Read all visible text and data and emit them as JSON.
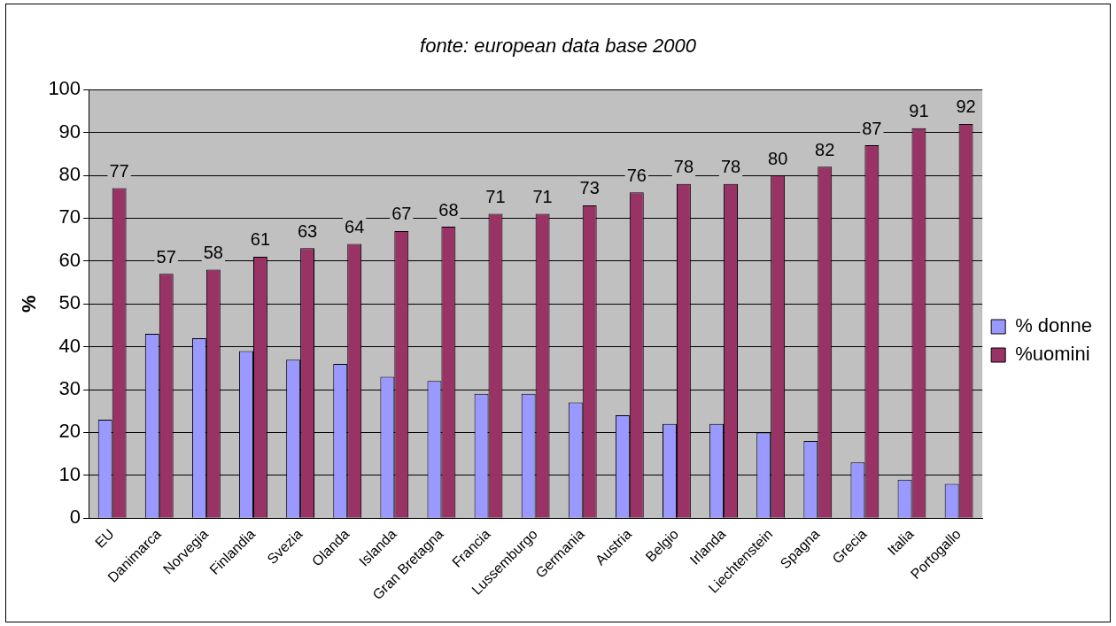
{
  "chart_data": {
    "type": "bar",
    "title": "fonte: european data base 2000",
    "ylabel": "%",
    "categories": [
      "EU",
      "Danimarca",
      "Norvegia",
      "Finlandia",
      "Svezia",
      "Olanda",
      "Islanda",
      "Gran Bretagna",
      "Francia",
      "Lussemburgo",
      "Germania",
      "Austria",
      "Belgio",
      "Irlanda",
      "Liechtenstein",
      "Spagna",
      "Grecia",
      "Italia",
      "Portogallo"
    ],
    "series": [
      {
        "name": "% donne",
        "color": "#9999ff",
        "values": [
          23,
          43,
          42,
          39,
          37,
          36,
          33,
          32,
          29,
          29,
          27,
          24,
          22,
          22,
          20,
          18,
          13,
          9,
          8
        ]
      },
      {
        "name": "%uomini",
        "color": "#993366",
        "values": [
          77,
          57,
          58,
          61,
          63,
          64,
          67,
          68,
          71,
          71,
          73,
          76,
          78,
          78,
          80,
          82,
          87,
          91,
          92
        ],
        "value_labels": [
          "77",
          "57",
          "58",
          "61",
          "63",
          "64",
          "67",
          "68",
          "71",
          "71",
          "73",
          "76",
          "78",
          "78",
          "80",
          "82",
          "87",
          "91",
          "92"
        ]
      }
    ],
    "ylim": [
      0,
      100
    ],
    "yticks": [
      0,
      10,
      20,
      30,
      40,
      50,
      60,
      70,
      80,
      90,
      100
    ],
    "grid": "y",
    "legend": "right"
  }
}
